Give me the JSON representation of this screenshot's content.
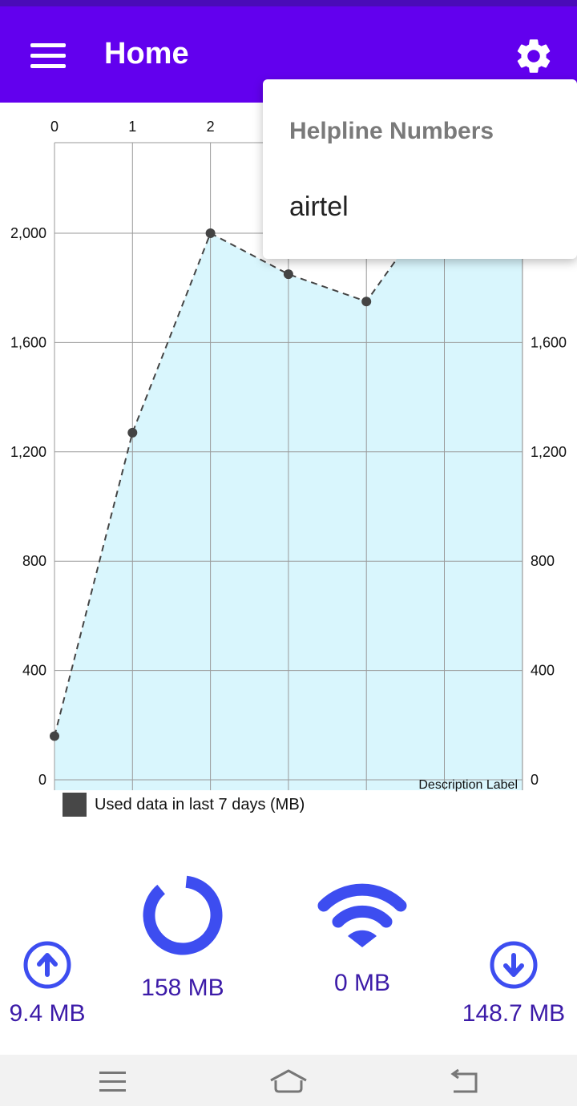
{
  "appbar": {
    "title": "Home",
    "menu_icon": "hamburger-menu-icon",
    "settings_icon": "gear-icon",
    "color": "#6200ee"
  },
  "dropdown": {
    "header": "Helpline Numbers",
    "items": [
      "airtel"
    ]
  },
  "chart_data": {
    "type": "area",
    "x": [
      0,
      1,
      2,
      3,
      4,
      5,
      6
    ],
    "values": [
      160,
      1270,
      2000,
      1850,
      1750,
      2150,
      2400
    ],
    "top_tick_labels": [
      "0",
      "1",
      "2"
    ],
    "left_tick_labels": [
      "0",
      "400",
      "800",
      "1,200",
      "1,600",
      "2,000"
    ],
    "right_tick_labels": [
      "0",
      "400",
      "800",
      "1,200",
      "1,600"
    ],
    "ylim": [
      0,
      2330
    ],
    "grid": true,
    "fill_color": "#d9f6fd",
    "line_color": "#444444",
    "line_style": "dashed",
    "description": "Description Label",
    "legend": {
      "label": "Used data in last 7 days (MB)",
      "color": "#474747",
      "position": "bottom-left"
    }
  },
  "stats": {
    "upload": {
      "icon": "upload-arrow-icon",
      "value": "9.4 MB"
    },
    "total": {
      "icon": "donut-ring-icon",
      "value": "158 MB"
    },
    "wifi": {
      "icon": "wifi-icon",
      "value": "0 MB"
    },
    "download": {
      "icon": "download-arrow-icon",
      "value": "148.7 MB"
    },
    "icon_color": "#3d4df0"
  },
  "nav": {
    "menu_icon": "recent-apps-icon",
    "home_icon": "home-icon",
    "back_icon": "back-icon"
  }
}
